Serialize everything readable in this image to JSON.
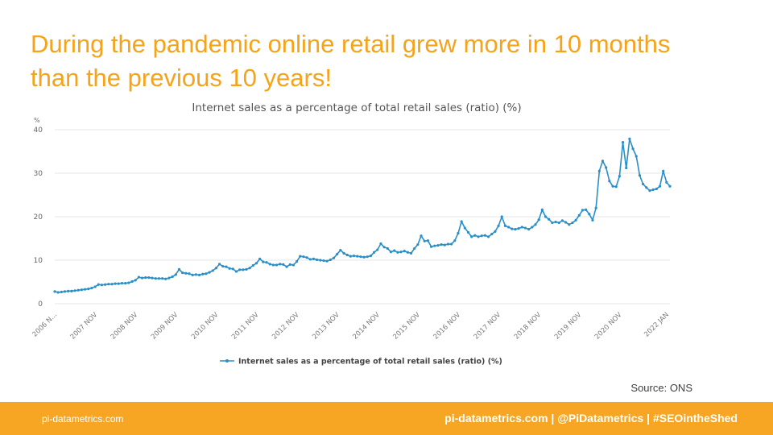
{
  "slide": {
    "title_line1": "During the pandemic online retail grew more in 10 months",
    "title_line2": "than the previous 10 years!",
    "source": "Source: ONS"
  },
  "footer": {
    "left": "pi-datametrics.com",
    "right": "pi-datametrics.com | @PiDatametrics | #SEOintheShed"
  },
  "colors": {
    "accent": "#f5a31a",
    "footer": "#f6a623",
    "series": "#2a8fc7"
  },
  "chart_data": {
    "type": "line",
    "title": "Internet sales as a percentage of total retail sales (ratio) (%)",
    "ylabel": "%",
    "ylim": [
      0,
      40
    ],
    "yticks": [
      0,
      10,
      20,
      30,
      40
    ],
    "grid": true,
    "legend_position": "bottom",
    "x_tick_labels": [
      "2006 N...",
      "2007 NOV",
      "2008 NOV",
      "2009 NOV",
      "2010 NOV",
      "2011 NOV",
      "2012 NOV",
      "2013 NOV",
      "2014 NOV",
      "2015 NOV",
      "2016 NOV",
      "2017 NOV",
      "2018 NOV",
      "2019 NOV",
      "2020 NOV",
      "2022 JAN"
    ],
    "x_start": "2006-11",
    "x_end": "2022-01",
    "series": [
      {
        "name": "Internet sales as a percentage of total retail sales (ratio) (%)",
        "values": [
          2.8,
          2.6,
          2.7,
          2.8,
          2.9,
          2.9,
          3.0,
          3.1,
          3.2,
          3.3,
          3.4,
          3.6,
          3.9,
          4.4,
          4.3,
          4.4,
          4.5,
          4.5,
          4.6,
          4.6,
          4.7,
          4.7,
          4.8,
          5.1,
          5.4,
          6.1,
          5.9,
          6.0,
          6.0,
          5.9,
          5.8,
          5.8,
          5.8,
          5.7,
          5.9,
          6.2,
          6.7,
          7.9,
          7.1,
          7.0,
          6.9,
          6.6,
          6.7,
          6.6,
          6.8,
          6.9,
          7.2,
          7.6,
          8.2,
          9.1,
          8.6,
          8.5,
          8.1,
          8.0,
          7.4,
          7.8,
          7.8,
          7.9,
          8.2,
          8.8,
          9.3,
          10.3,
          9.6,
          9.5,
          9.1,
          8.9,
          8.9,
          9.1,
          9.0,
          8.5,
          9.0,
          8.9,
          9.7,
          10.9,
          10.8,
          10.6,
          10.2,
          10.3,
          10.1,
          10.0,
          9.9,
          9.8,
          10.1,
          10.5,
          11.4,
          12.3,
          11.6,
          11.2,
          10.9,
          11.0,
          10.9,
          10.8,
          10.7,
          10.8,
          11.0,
          11.8,
          12.4,
          13.8,
          13.0,
          12.7,
          11.9,
          12.2,
          11.8,
          11.9,
          12.1,
          11.8,
          11.6,
          12.7,
          13.6,
          15.6,
          14.4,
          14.5,
          13.1,
          13.3,
          13.4,
          13.6,
          13.5,
          13.7,
          13.7,
          14.5,
          16.2,
          18.9,
          17.4,
          16.4,
          15.4,
          15.7,
          15.4,
          15.6,
          15.7,
          15.4,
          16.0,
          16.6,
          17.9,
          20.0,
          17.9,
          17.6,
          17.2,
          17.1,
          17.3,
          17.6,
          17.4,
          17.1,
          17.6,
          18.2,
          19.3,
          21.6,
          20.0,
          19.4,
          18.6,
          18.8,
          18.6,
          19.1,
          18.7,
          18.2,
          18.6,
          19.2,
          20.3,
          21.5,
          21.6,
          20.6,
          19.2,
          22.0,
          30.5,
          32.8,
          31.3,
          28.2,
          27.0,
          26.9,
          29.3,
          37.1,
          31.2,
          37.9,
          35.6,
          33.9,
          29.5,
          27.5,
          26.7,
          26.0,
          26.2,
          26.4,
          27.0,
          30.5,
          27.9,
          27.0
        ]
      }
    ]
  }
}
